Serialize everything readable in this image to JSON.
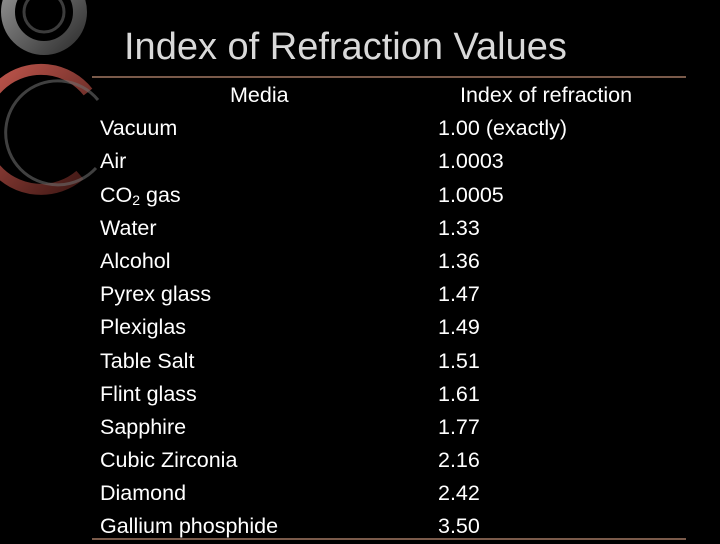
{
  "title": "Index of Refraction Values",
  "table": {
    "headers": {
      "media": "Media",
      "index": "Index of refraction"
    },
    "rows": [
      {
        "media": "Vacuum",
        "index": "1.00 (exactly)"
      },
      {
        "media": "Air",
        "index": "1.0003"
      },
      {
        "media": "CO",
        "media_sub": "2",
        "media_suffix": " gas",
        "index": "1.0005"
      },
      {
        "media": "Water",
        "index": "1.33"
      },
      {
        "media": "Alcohol",
        "index": "1.36"
      },
      {
        "media": "Pyrex glass",
        "index": "1.47"
      },
      {
        "media": "Plexiglas",
        "index": "1.49"
      },
      {
        "media": "Table Salt",
        "index": "1.51"
      },
      {
        "media": "Flint glass",
        "index": "1.61"
      },
      {
        "media": "Sapphire",
        "index": "1.77"
      },
      {
        "media": "Cubic Zirconia",
        "index": "2.16"
      },
      {
        "media": "Diamond",
        "index": "2.42"
      },
      {
        "media": "Gallium phosphide",
        "index": "3.50"
      }
    ]
  },
  "colors": {
    "background": "#000000",
    "title": "#d9d9d9",
    "text": "#ffffff",
    "rule": "#7a5a4a",
    "decoration": "#8a8a8a",
    "decoration_accent": "#9a3c33"
  }
}
